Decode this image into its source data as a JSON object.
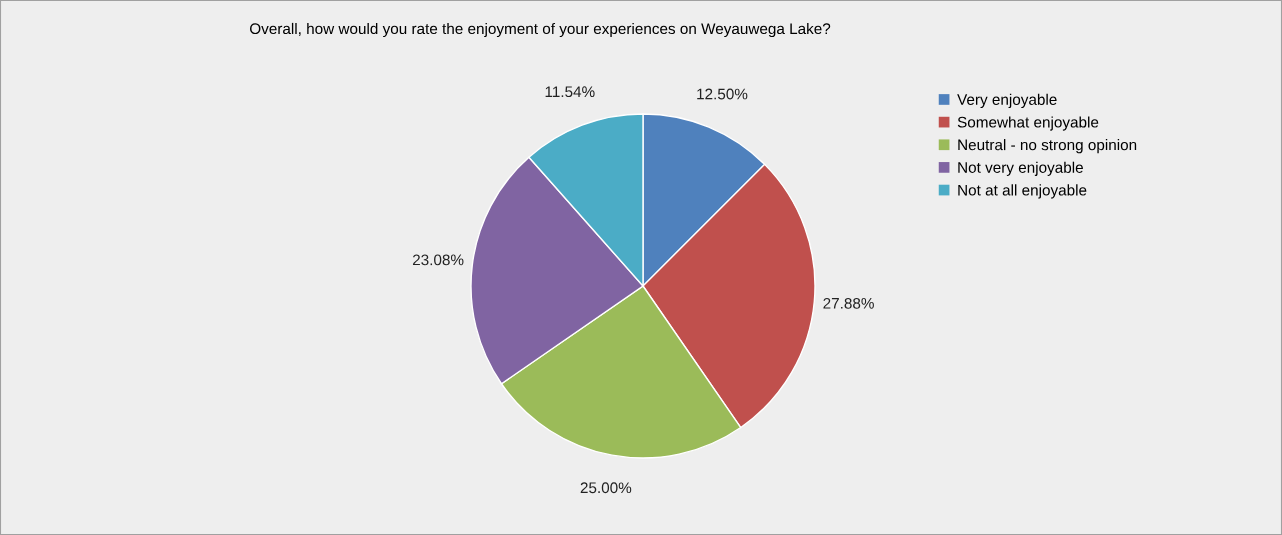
{
  "chart_data": {
    "type": "pie",
    "title": "Overall, how would you rate the enjoyment of your experiences on Weyauwega Lake?",
    "categories": [
      "Very enjoyable",
      "Somewhat enjoyable",
      "Neutral - no strong opinion",
      "Not very enjoyable",
      "Not at all enjoyable"
    ],
    "values": [
      12.5,
      27.88,
      25.0,
      23.08,
      11.54
    ],
    "value_labels": [
      "12.50%",
      "27.88%",
      "25.00%",
      "23.08%",
      "11.54%"
    ],
    "colors": [
      "#4f81bd",
      "#c0504d",
      "#9bbb59",
      "#8064a2",
      "#4bacc6"
    ],
    "legend": "right"
  }
}
